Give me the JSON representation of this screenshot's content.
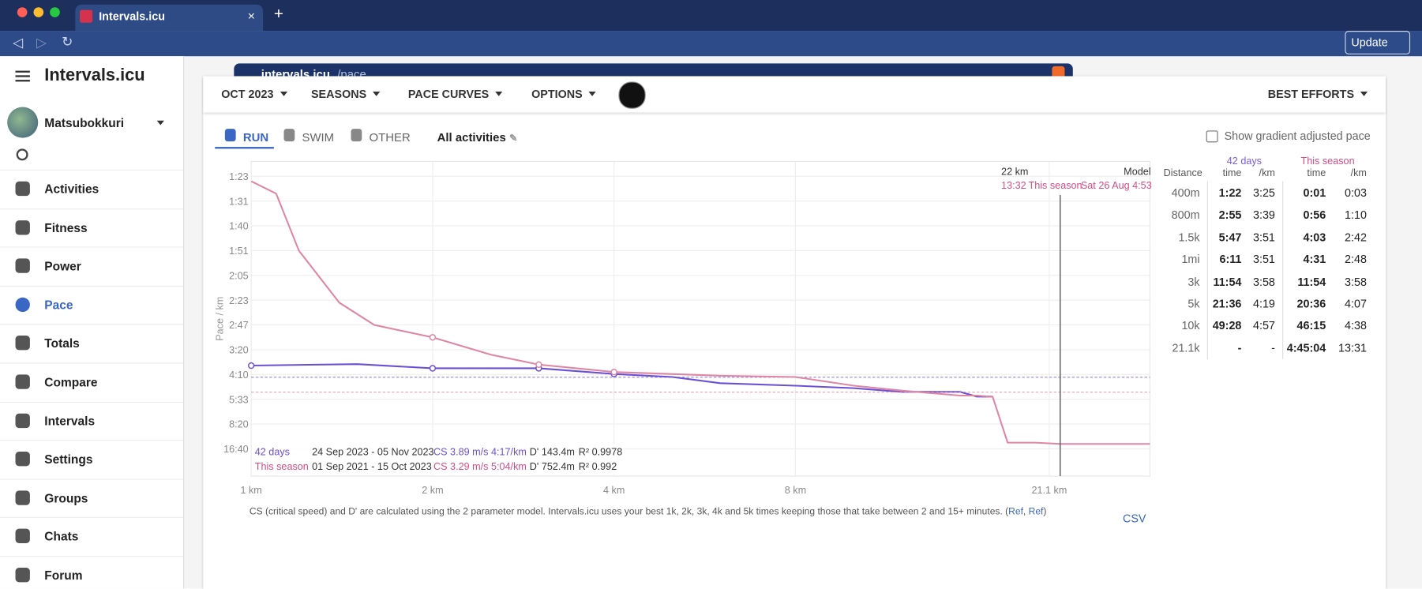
{
  "browser": {
    "tab_title": "Intervals.icu",
    "url_host": "intervals.icu",
    "url_path": "/pace",
    "update_button": "Update"
  },
  "sidebar": {
    "app_name": "Intervals.icu",
    "user": "Matsubokkuri",
    "nav": [
      "Activities",
      "Fitness",
      "Power",
      "Pace",
      "Totals",
      "Compare",
      "Intervals",
      "Settings",
      "Groups",
      "Chats",
      "Forum"
    ],
    "active_index": 3
  },
  "toolbar": {
    "menus": [
      "OCT 2023",
      "SEASONS",
      "PACE CURVES",
      "OPTIONS"
    ],
    "right_menu": "BEST EFFORTS"
  },
  "tabs": {
    "items": [
      "RUN",
      "SWIM",
      "OTHER"
    ],
    "active_index": 0,
    "filter": "All activities",
    "gradient_checkbox": "Show gradient adjusted pace"
  },
  "chart_data": {
    "type": "line",
    "y_label": "Pace / km",
    "xscale": "log",
    "xlim": [
      1,
      31
    ],
    "xticks": [
      {
        "value": 1,
        "label": "1 km"
      },
      {
        "value": 2,
        "label": "2 km"
      },
      {
        "value": 4,
        "label": "4 km"
      },
      {
        "value": 8,
        "label": "8 km"
      },
      {
        "value": 21.1,
        "label": "21.1 km"
      }
    ],
    "ylim": [
      -0.1,
      12.6
    ],
    "yticks": [
      {
        "value": 12,
        "label": "1:23"
      },
      {
        "value": 11,
        "label": "1:31"
      },
      {
        "value": 10,
        "label": "1:40"
      },
      {
        "value": 9,
        "label": "1:51"
      },
      {
        "value": 8,
        "label": "2:05"
      },
      {
        "value": 7,
        "label": "2:23"
      },
      {
        "value": 6,
        "label": "2:47"
      },
      {
        "value": 5,
        "label": "3:20"
      },
      {
        "value": 4,
        "label": "4:10"
      },
      {
        "value": 3,
        "label": "5:33"
      },
      {
        "value": 2,
        "label": "8:20"
      },
      {
        "value": 1,
        "label": "16:40"
      }
    ],
    "grid": true,
    "series": [
      {
        "name": "42 days",
        "color": "#6a50d3",
        "x": [
          1,
          1.5,
          2,
          3,
          4,
          5,
          6,
          8,
          10,
          12,
          15,
          16,
          17
        ],
        "values": [
          4.36,
          4.42,
          4.25,
          4.25,
          4.02,
          3.9,
          3.65,
          3.55,
          3.45,
          3.3,
          3.3,
          3.11,
          3.11
        ],
        "markers": [
          0,
          2,
          3,
          4
        ],
        "cs_speed": 3.89,
        "stats": {
          "period": "24 Sep 2023 - 05 Nov 2023",
          "cs": "CS 3.89 m/s 4:17/km",
          "d_prime": "D' 143.4m",
          "r2": "R² 0.9978"
        }
      },
      {
        "name": "This season",
        "color": "#de86a3",
        "x": [
          1,
          1.1,
          1.2,
          1.4,
          1.6,
          2,
          2.5,
          3,
          4,
          6,
          8,
          10,
          12,
          15,
          16,
          17,
          18,
          20,
          22,
          25,
          31
        ],
        "values": [
          11.8,
          11.3,
          9,
          6.9,
          6,
          5.5,
          4.8,
          4.4,
          4.1,
          3.95,
          3.9,
          3.55,
          3.35,
          3.15,
          3.15,
          3.1,
          1.25,
          1.25,
          1.2,
          1.2,
          1.2
        ],
        "markers": [
          5,
          7,
          8
        ],
        "cs_speed": 3.29,
        "stats": {
          "period": "01 Sep 2021 - 15 Oct 2023",
          "cs": "CS 3.29 m/s 5:04/km",
          "d_prime": "D' 752.4m",
          "r2": "R² 0.992"
        }
      }
    ],
    "cursor_x": 22,
    "tooltip": {
      "distance": "22 km",
      "model": "Model",
      "time": "13:32",
      "season": "This season",
      "date": "Sat 26 Aug 4:53"
    }
  },
  "note": {
    "text": "CS (critical speed) and D' are calculated using the 2 parameter model. Intervals.icu uses your best 1k, 2k, 3k, 4k and 5k times keeping those that take between 2 and 15+ minutes. (",
    "links": [
      "Ref",
      "Ref"
    ],
    "separator": ", ",
    "close": ")"
  },
  "csv": "CSV",
  "best_efforts": {
    "distance_header": "Distance",
    "groups": [
      "42 days",
      "This season"
    ],
    "subheaders": [
      "time",
      "/km",
      "time",
      "/km"
    ],
    "rows": [
      [
        "400m",
        "1:22",
        "3:25",
        "0:01",
        "0:03"
      ],
      [
        "800m",
        "2:55",
        "3:39",
        "0:56",
        "1:10"
      ],
      [
        "1.5k",
        "5:47",
        "3:51",
        "4:03",
        "2:42"
      ],
      [
        "1mi",
        "6:11",
        "3:51",
        "4:31",
        "2:48"
      ],
      [
        "3k",
        "11:54",
        "3:58",
        "11:54",
        "3:58"
      ],
      [
        "5k",
        "21:36",
        "4:19",
        "20:36",
        "4:07"
      ],
      [
        "10k",
        "49:28",
        "4:57",
        "46:15",
        "4:38"
      ],
      [
        "21.1k",
        "-",
        "-",
        "4:45:04",
        "13:31"
      ]
    ]
  }
}
